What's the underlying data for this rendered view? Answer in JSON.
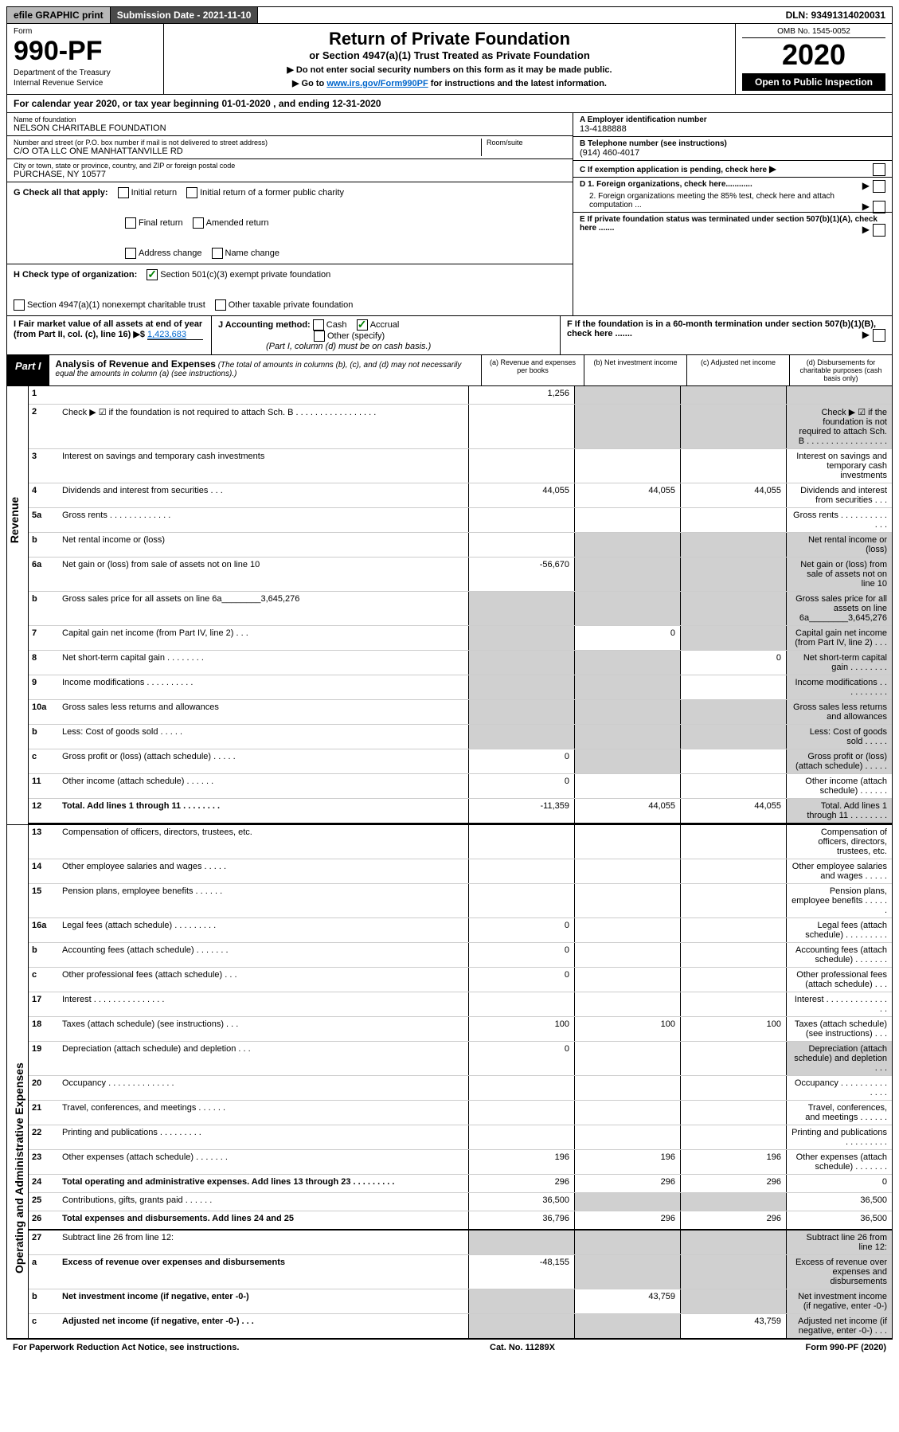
{
  "topbar": {
    "efile": "efile GRAPHIC print",
    "submission": "Submission Date - 2021-11-10",
    "dln": "DLN: 93491314020031"
  },
  "header": {
    "form_label": "Form",
    "form_number": "990-PF",
    "dept1": "Department of the Treasury",
    "dept2": "Internal Revenue Service",
    "title": "Return of Private Foundation",
    "subtitle": "or Section 4947(a)(1) Trust Treated as Private Foundation",
    "instr1": "▶ Do not enter social security numbers on this form as it may be made public.",
    "instr2_pre": "▶ Go to ",
    "instr2_link": "www.irs.gov/Form990PF",
    "instr2_post": " for instructions and the latest information.",
    "omb": "OMB No. 1545-0052",
    "year": "2020",
    "open": "Open to Public Inspection"
  },
  "calendar": "For calendar year 2020, or tax year beginning 01-01-2020                    , and ending 12-31-2020",
  "info": {
    "name_label": "Name of foundation",
    "name": "NELSON CHARITABLE FOUNDATION",
    "addr_label": "Number and street (or P.O. box number if mail is not delivered to street address)",
    "addr": "C/O OTA LLC ONE MANHATTANVILLE RD",
    "room_label": "Room/suite",
    "city_label": "City or town, state or province, country, and ZIP or foreign postal code",
    "city": "PURCHASE, NY  10577",
    "ein_label": "A Employer identification number",
    "ein": "13-4188888",
    "phone_label": "B Telephone number (see instructions)",
    "phone": "(914) 460-4017",
    "c_label": "C If exemption application is pending, check here"
  },
  "checks": {
    "g_label": "G Check all that apply:",
    "initial": "Initial return",
    "initial_former": "Initial return of a former public charity",
    "final": "Final return",
    "amended": "Amended return",
    "addr_change": "Address change",
    "name_change": "Name change",
    "h_label": "H Check type of organization:",
    "h_501c3": "Section 501(c)(3) exempt private foundation",
    "h_4947": "Section 4947(a)(1) nonexempt charitable trust",
    "h_other": "Other taxable private foundation",
    "i_label": "I Fair market value of all assets at end of year (from Part II, col. (c), line 16) ▶$ ",
    "i_value": "1,423,683",
    "j_label": "J Accounting method:",
    "j_cash": "Cash",
    "j_accrual": "Accrual",
    "j_other": "Other (specify)",
    "j_note": "(Part I, column (d) must be on cash basis.)",
    "d1": "D 1. Foreign organizations, check here............",
    "d2": "2. Foreign organizations meeting the 85% test, check here and attach computation ...",
    "e": "E  If private foundation status was terminated under section 507(b)(1)(A), check here .......",
    "f": "F  If the foundation is in a 60-month termination under section 507(b)(1)(B), check here .......",
    "arrow": "▶"
  },
  "part1": {
    "label": "Part I",
    "title": "Analysis of Revenue and Expenses",
    "note": "(The total of amounts in columns (b), (c), and (d) may not necessarily equal the amounts in column (a) (see instructions).)",
    "col_a": "(a) Revenue and expenses per books",
    "col_b": "(b) Net investment income",
    "col_c": "(c) Adjusted net income",
    "col_d": "(d) Disbursements for charitable purposes (cash basis only)"
  },
  "side": {
    "revenue": "Revenue",
    "expenses": "Operating and Administrative Expenses"
  },
  "rows": [
    {
      "n": "1",
      "d": "",
      "a": "1,256",
      "b": "",
      "c": "",
      "bg": "g",
      "cg": "g",
      "dg": "g"
    },
    {
      "n": "2",
      "d": "Check ▶ ☑ if the foundation is not required to attach Sch. B      . . . . . . . . . . . . . . . . .",
      "bg": "g",
      "cg": "g",
      "dg": "g"
    },
    {
      "n": "3",
      "d": "Interest on savings and temporary cash investments"
    },
    {
      "n": "4",
      "d": "Dividends and interest from securities     . . .",
      "a": "44,055",
      "b": "44,055",
      "c": "44,055"
    },
    {
      "n": "5a",
      "d": "Gross rents     . . . . . . . . . . . . ."
    },
    {
      "n": "b",
      "d": "Net rental income or (loss)",
      "bg": "g",
      "cg": "g",
      "dg": "g"
    },
    {
      "n": "6a",
      "d": "Net gain or (loss) from sale of assets not on line 10",
      "a": "-56,670",
      "bg": "g",
      "cg": "g",
      "dg": "g"
    },
    {
      "n": "b",
      "d": "Gross sales price for all assets on line 6a________3,645,276",
      "ag": "g",
      "bg": "g",
      "cg": "g",
      "dg": "g"
    },
    {
      "n": "7",
      "d": "Capital gain net income (from Part IV, line 2)   . . .",
      "ag": "g",
      "b": "0",
      "cg": "g",
      "dg": "g"
    },
    {
      "n": "8",
      "d": "Net short-term capital gain   . . . . . . . .",
      "ag": "g",
      "bg": "g",
      "c": "0",
      "dg": "g"
    },
    {
      "n": "9",
      "d": "Income modifications  . . . . . . . . . .",
      "ag": "g",
      "bg": "g",
      "dg": "g"
    },
    {
      "n": "10a",
      "d": "Gross sales less returns and allowances",
      "ag": "g",
      "bg": "g",
      "cg": "g",
      "dg": "g"
    },
    {
      "n": "b",
      "d": "Less: Cost of goods sold     . . . . .",
      "ag": "g",
      "bg": "g",
      "cg": "g",
      "dg": "g"
    },
    {
      "n": "c",
      "d": "Gross profit or (loss) (attach schedule)     . . . . .",
      "a": "0",
      "bg": "g",
      "dg": "g"
    },
    {
      "n": "11",
      "d": "Other income (attach schedule)    . . . . . .",
      "a": "0"
    },
    {
      "n": "12",
      "d": "Total. Add lines 1 through 11   . . . . . . . .",
      "a": "-11,359",
      "b": "44,055",
      "c": "44,055",
      "dg": "g",
      "bold": true,
      "div": true
    },
    {
      "n": "13",
      "d": "Compensation of officers, directors, trustees, etc."
    },
    {
      "n": "14",
      "d": "Other employee salaries and wages    . . . . ."
    },
    {
      "n": "15",
      "d": "Pension plans, employee benefits  . . . . . ."
    },
    {
      "n": "16a",
      "d": "Legal fees (attach schedule) . . . . . . . . .",
      "a": "0"
    },
    {
      "n": "b",
      "d": "Accounting fees (attach schedule) . . . . . . .",
      "a": "0"
    },
    {
      "n": "c",
      "d": "Other professional fees (attach schedule)    . . .",
      "a": "0"
    },
    {
      "n": "17",
      "d": "Interest . . . . . . . . . . . . . . ."
    },
    {
      "n": "18",
      "d": "Taxes (attach schedule) (see instructions)      . . .",
      "a": "100",
      "b": "100",
      "c": "100"
    },
    {
      "n": "19",
      "d": "Depreciation (attach schedule) and depletion    . . .",
      "a": "0",
      "dg": "g"
    },
    {
      "n": "20",
      "d": "Occupancy . . . . . . . . . . . . . ."
    },
    {
      "n": "21",
      "d": "Travel, conferences, and meetings . . . . . ."
    },
    {
      "n": "22",
      "d": "Printing and publications . . . . . . . . ."
    },
    {
      "n": "23",
      "d": "Other expenses (attach schedule) . . . . . . .",
      "a": "196",
      "b": "196",
      "c": "196"
    },
    {
      "n": "24",
      "d": "Total operating and administrative expenses. Add lines 13 through 23   . . . . . . . . .",
      "a": "296",
      "b": "296",
      "c": "296",
      "dval": "0",
      "bold": true
    },
    {
      "n": "25",
      "d": "Contributions, gifts, grants paid     . . . . . .",
      "a": "36,500",
      "bg": "g",
      "cg": "g",
      "dval": "36,500"
    },
    {
      "n": "26",
      "d": "Total expenses and disbursements. Add lines 24 and 25",
      "a": "36,796",
      "b": "296",
      "c": "296",
      "dval": "36,500",
      "bold": true,
      "div": true
    },
    {
      "n": "27",
      "d": "Subtract line 26 from line 12:",
      "ag": "g",
      "bg": "g",
      "cg": "g",
      "dg": "g"
    },
    {
      "n": "a",
      "d": "Excess of revenue over expenses and disbursements",
      "a": "-48,155",
      "bg": "g",
      "cg": "g",
      "dg": "g",
      "bold": true
    },
    {
      "n": "b",
      "d": "Net investment income (if negative, enter -0-)",
      "ag": "g",
      "b": "43,759",
      "cg": "g",
      "dg": "g",
      "bold": true
    },
    {
      "n": "c",
      "d": "Adjusted net income (if negative, enter -0-)   . . .",
      "ag": "g",
      "bg": "g",
      "c": "43,759",
      "dg": "g",
      "bold": true
    }
  ],
  "footer": {
    "left": "For Paperwork Reduction Act Notice, see instructions.",
    "center": "Cat. No. 11289X",
    "right": "Form 990-PF (2020)"
  }
}
